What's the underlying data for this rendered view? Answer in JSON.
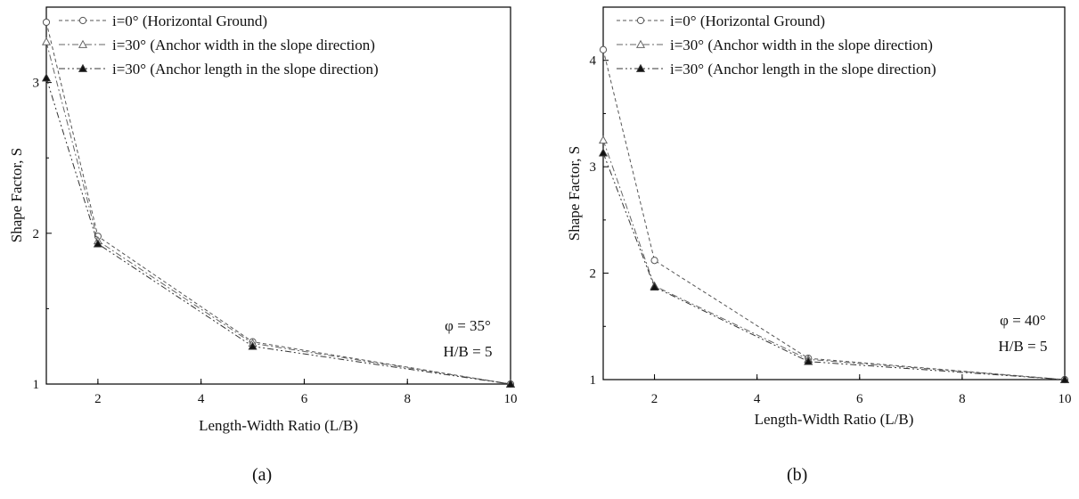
{
  "colors": {
    "series0": "#555555",
    "series1": "#666666",
    "series2": "#333333",
    "frame": "#000000"
  },
  "chart_data": [
    {
      "type": "line",
      "caption": "(a)",
      "xlabel": "Length-Width Ratio (L/B)",
      "ylabel": "Shape Factor, S",
      "xlim": [
        1,
        10
      ],
      "ylim": [
        1,
        3.5
      ],
      "xticks": [
        2,
        4,
        6,
        8,
        10
      ],
      "yticks": [
        1,
        2,
        3
      ],
      "grid": false,
      "legend_position": "top-left",
      "annotations": [
        "φ = 35°",
        "H/B = 5"
      ],
      "series": [
        {
          "name": "i=0° (Horizontal Ground)",
          "marker": "circle-open",
          "line": "dashed",
          "x": [
            1,
            2,
            5,
            10
          ],
          "y": [
            3.4,
            1.98,
            1.28,
            1.0
          ]
        },
        {
          "name": "i=30° (Anchor width in the slope direction)",
          "marker": "triangle-open",
          "line": "dashdot",
          "x": [
            1,
            2,
            5,
            10
          ],
          "y": [
            3.27,
            1.95,
            1.27,
            1.0
          ]
        },
        {
          "name": "i=30° (Anchor length in the slope direction)",
          "marker": "triangle-filled",
          "line": "dashdotdot",
          "x": [
            1,
            2,
            5,
            10
          ],
          "y": [
            3.03,
            1.93,
            1.25,
            1.0
          ]
        }
      ]
    },
    {
      "type": "line",
      "caption": "(b)",
      "xlabel": "Length-Width Ratio (L/B)",
      "ylabel": "Shape Factor, S",
      "xlim": [
        1,
        10
      ],
      "ylim": [
        1,
        4.5
      ],
      "xticks": [
        2,
        4,
        6,
        8,
        10
      ],
      "yticks": [
        1,
        2,
        3,
        4
      ],
      "grid": false,
      "legend_position": "top-left",
      "annotations": [
        "φ = 40°",
        "H/B = 5"
      ],
      "series": [
        {
          "name": "i=0° (Horizontal Ground)",
          "marker": "circle-open",
          "line": "dashed",
          "x": [
            1,
            2,
            5,
            10
          ],
          "y": [
            4.1,
            2.12,
            1.2,
            1.0
          ]
        },
        {
          "name": "i=30° (Anchor width in the slope direction)",
          "marker": "triangle-open",
          "line": "dashdot",
          "x": [
            1,
            2,
            5,
            10
          ],
          "y": [
            3.25,
            1.88,
            1.19,
            1.0
          ]
        },
        {
          "name": "i=30° (Anchor length in the slope direction)",
          "marker": "triangle-filled",
          "line": "dashdotdot",
          "x": [
            1,
            2,
            5,
            10
          ],
          "y": [
            3.13,
            1.87,
            1.17,
            1.0
          ]
        }
      ]
    }
  ]
}
